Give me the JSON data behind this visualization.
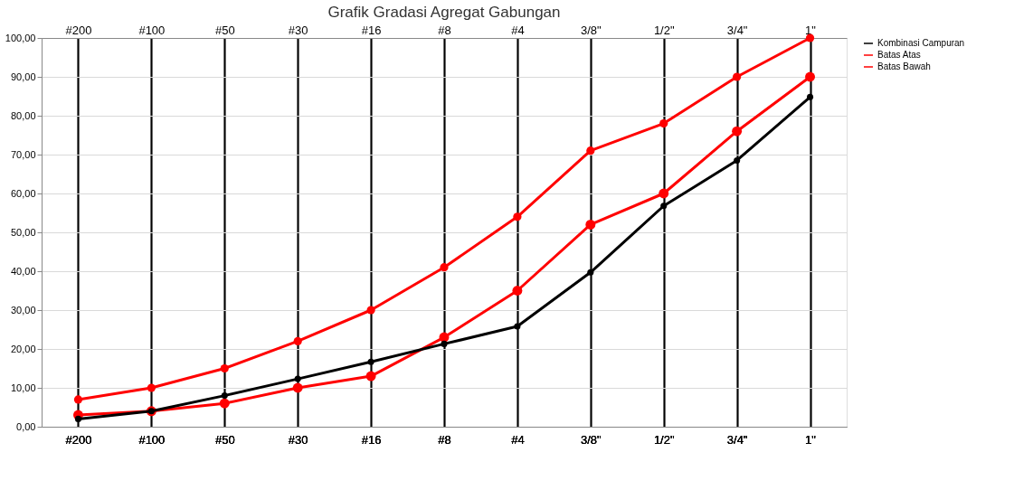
{
  "chart_data": {
    "type": "line",
    "title": "Grafik Gradasi Agregat Gabungan",
    "categories": [
      "#200",
      "#100",
      "#50",
      "#30",
      "#16",
      "#8",
      "#4",
      "3/8\"",
      "1/2\"",
      "3/4\"",
      "1\""
    ],
    "ylim": [
      0,
      100
    ],
    "yticks": [
      {
        "value": 0,
        "label": "0,00"
      },
      {
        "value": 10,
        "label": "10,00"
      },
      {
        "value": 20,
        "label": "20,00"
      },
      {
        "value": 30,
        "label": "30,00"
      },
      {
        "value": 40,
        "label": "40,00"
      },
      {
        "value": 50,
        "label": "50,00"
      },
      {
        "value": 60,
        "label": "60,00"
      },
      {
        "value": 70,
        "label": "70,00"
      },
      {
        "value": 80,
        "label": "80,00"
      },
      {
        "value": 90,
        "label": "90,00"
      },
      {
        "value": 100,
        "label": "100,00"
      }
    ],
    "grid": true,
    "legend": "right",
    "marker": "circle",
    "line_style": "solid",
    "series": [
      {
        "name": "Kombinasi Campuran",
        "color": "#000000",
        "values": [
          2,
          4,
          8,
          12.3,
          16.7,
          21.3,
          25.8,
          39.7,
          56.8,
          68.5,
          84.8
        ]
      },
      {
        "name": "Batas Atas",
        "color": "#ff0000",
        "values": [
          7,
          10,
          15,
          22,
          30,
          41,
          54,
          71,
          78,
          90,
          100
        ]
      },
      {
        "name": "Batas Bawah",
        "color": "#ff0000",
        "values": [
          3,
          4,
          6,
          10,
          13,
          23,
          35,
          52,
          60,
          76,
          90
        ]
      }
    ]
  }
}
